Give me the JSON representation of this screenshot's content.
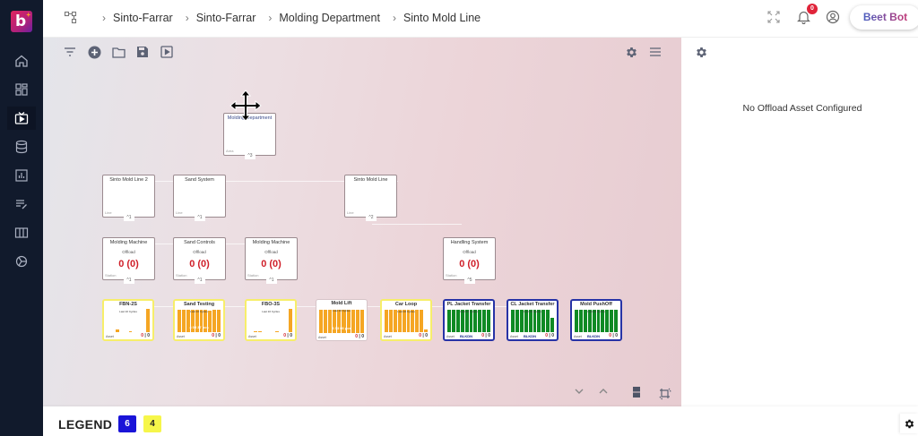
{
  "app": {
    "logo_letter": "b",
    "logo_plus": "+"
  },
  "sidebar": {
    "items": [
      {
        "name": "home",
        "icon": "home-icon",
        "active": false
      },
      {
        "name": "dashboard",
        "icon": "dashboard-grid-icon",
        "active": false
      },
      {
        "name": "live-view",
        "icon": "tv-play-icon",
        "active": true
      },
      {
        "name": "database",
        "icon": "database-icon",
        "active": false
      },
      {
        "name": "reports",
        "icon": "bar-chart-icon",
        "active": false
      },
      {
        "name": "edit-list",
        "icon": "edit-list-icon",
        "active": false
      },
      {
        "name": "columns",
        "icon": "columns-icon",
        "active": false
      },
      {
        "name": "integrations",
        "icon": "hub-icon",
        "active": false
      }
    ]
  },
  "header": {
    "breadcrumbs": [
      "Sinto-Farrar",
      "Sinto-Farrar",
      "Molding Department",
      "Sinto Mold Line"
    ],
    "notification_count": "0",
    "assistant_label": "Beet Bot"
  },
  "canvas": {
    "toolbar": [
      "filter-icon",
      "add-circle-icon",
      "folder-icon",
      "save-icon",
      "play-box-icon"
    ],
    "toolbar_right": [
      "settings-icon",
      "menu-icon"
    ],
    "nodes": [
      {
        "id": "molding-department",
        "title": "Molding Department",
        "kind": "Area",
        "children": "3"
      },
      {
        "id": "sinto-mold-line-2",
        "title": "Sinto Mold Line 2",
        "kind": "Line",
        "children": "1"
      },
      {
        "id": "sand-system",
        "title": "Sand System",
        "kind": "Line",
        "children": "1"
      },
      {
        "id": "sinto-mold-line",
        "title": "Sinto Mold Line",
        "kind": "Line",
        "children": "2"
      }
    ],
    "stations": [
      {
        "id": "molding-machine-a",
        "title": "Molding Machine",
        "sub": "Offload",
        "value": "0 (0)",
        "kind": "Station",
        "children": "1"
      },
      {
        "id": "sand-controls",
        "title": "Sand Controls",
        "sub": "Offload",
        "value": "0 (0)",
        "kind": "Station",
        "children": "1"
      },
      {
        "id": "molding-machine-b",
        "title": "Molding Machine",
        "sub": "Offload",
        "value": "0 (0)",
        "kind": "Station",
        "children": "1"
      },
      {
        "id": "handling-system",
        "title": "Handling System",
        "sub": "Offload",
        "value": "0 (0)",
        "kind": "Station",
        "children": "5"
      }
    ],
    "assets": [
      {
        "title": "FBN-2S",
        "border": "yellow",
        "caption": "Last 10 Cycles",
        "bar_color": "#f5a623",
        "bars": [
          0,
          0,
          12,
          0,
          0,
          5,
          0,
          0,
          0,
          100
        ],
        "mid": "",
        "foot": "Asset",
        "footval": "",
        "count": "0",
        "count_red": "0"
      },
      {
        "title": "Sand Testing",
        "border": "yellow",
        "caption": "Last 10 Cycles",
        "bar_color": "#f5a623",
        "bars": [
          96,
          96,
          96,
          96,
          96,
          96,
          96,
          92,
          96,
          96
        ],
        "mid": "4 05 37 pcs",
        "foot": "Asset",
        "footval": "",
        "count": "0",
        "count_red": "0"
      },
      {
        "title": "FBO-3S",
        "border": "yellow",
        "caption": "Last 10 Cycles",
        "bar_color": "#f5a623",
        "bars": [
          0,
          4,
          4,
          0,
          0,
          0,
          4,
          0,
          0,
          100
        ],
        "mid": "",
        "foot": "Asset",
        "footval": "",
        "count": "0",
        "count_red": "0"
      },
      {
        "title": "Mold Lift",
        "border": "white",
        "caption": "Last 10 Cycles",
        "bar_color": "#f5a623",
        "bars": [
          92,
          92,
          92,
          92,
          92,
          92,
          92,
          92,
          92,
          92
        ],
        "mid": "6 33 00 pcs",
        "foot": "Asset",
        "footval": "",
        "count": "0",
        "count_red": "0"
      },
      {
        "title": "Car Loop",
        "border": "yellow",
        "caption": "Last 10 Cycles",
        "bar_color": "#f5a623",
        "bars": [
          96,
          96,
          96,
          96,
          96,
          96,
          96,
          96,
          96,
          10
        ],
        "mid": "",
        "foot": "Asset",
        "footval": "",
        "count": "0",
        "count_red": "0"
      },
      {
        "title": "PL Jacket Transfer",
        "border": "blue",
        "caption": "Last 10 Cycles",
        "bar_color": "#0f8a24",
        "bars": [
          96,
          96,
          96,
          96,
          96,
          96,
          96,
          96,
          96,
          96
        ],
        "mid": "",
        "foot": "Asset",
        "footval": "BLKDN",
        "count": "0",
        "count_red": "0"
      },
      {
        "title": "CL Jacket Transfer",
        "border": "blue",
        "caption": "Last 10 Cycles",
        "bar_color": "#0f8a24",
        "bars": [
          96,
          96,
          96,
          96,
          96,
          96,
          96,
          96,
          96,
          60
        ],
        "mid": "",
        "foot": "Asset",
        "footval": "BLKDN",
        "count": "0",
        "count_red": "0"
      },
      {
        "title": "Mold PushOff",
        "border": "blue",
        "caption": "Last 10 Cycles",
        "bar_color": "#0f8a24",
        "bars": [
          96,
          96,
          96,
          96,
          96,
          96,
          96,
          96,
          96,
          96
        ],
        "mid": "",
        "foot": "Asset",
        "footval": "BLKDN",
        "count": "0",
        "count_red": "0"
      }
    ],
    "bottom_controls": [
      "chevron-down-icon",
      "chevron-up-icon",
      "layout-toggle-icon",
      "fit-view-icon"
    ]
  },
  "right_panel": {
    "message": "No Offload Asset Configured"
  },
  "legend": {
    "label": "LEGEND",
    "items": [
      {
        "value": "6",
        "bg": "#1a14d8",
        "fg": "#ffffff"
      },
      {
        "value": "4",
        "bg": "#f6f64a",
        "fg": "#222222"
      }
    ]
  }
}
